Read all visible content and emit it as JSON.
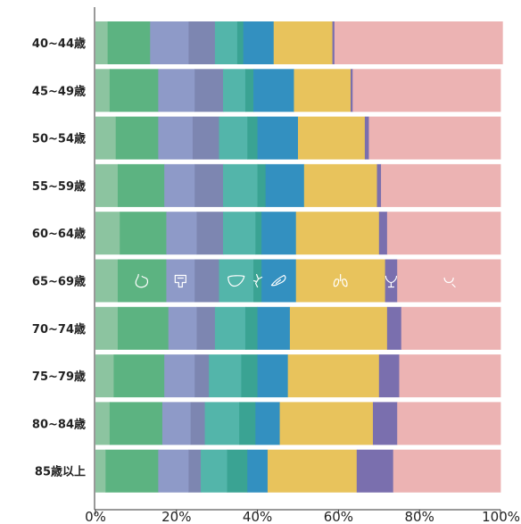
{
  "chart_data": {
    "type": "bar",
    "orientation": "horizontal",
    "stacked": true,
    "normalized": true,
    "title": "",
    "xlabel": "",
    "ylabel": "",
    "xlim": [
      0,
      100
    ],
    "x_ticks": [
      "0%",
      "20%",
      "40%",
      "60%",
      "80%",
      "100%"
    ],
    "grid": false,
    "legend": "none",
    "categories": [
      "40~44歳",
      "45~49歳",
      "50~54歳",
      "55~59歳",
      "60~64歳",
      "65~69歳",
      "70~74歳",
      "75~79歳",
      "80~84歳",
      "85歳以上"
    ],
    "series": [
      {
        "color": "#8cc4a0",
        "values": [
          3.0,
          3.5,
          5.0,
          5.5,
          6.0,
          5.5,
          5.5,
          4.5,
          3.5,
          2.5
        ]
      },
      {
        "color": "#5cb381",
        "values": [
          10.5,
          12.0,
          10.5,
          11.5,
          11.5,
          12.0,
          12.5,
          12.5,
          13.0,
          13.0
        ]
      },
      {
        "color": "#8e9ac8",
        "values": [
          9.5,
          9.0,
          8.5,
          7.5,
          7.5,
          7.0,
          7.0,
          7.5,
          7.0,
          7.5
        ]
      },
      {
        "color": "#7d86b1",
        "values": [
          6.5,
          7.0,
          6.5,
          7.0,
          6.5,
          6.0,
          4.5,
          3.5,
          3.5,
          3.0
        ]
      },
      {
        "color": "#53b5aa",
        "values": [
          5.5,
          5.5,
          7.0,
          8.5,
          8.0,
          8.5,
          7.5,
          8.0,
          8.5,
          6.5
        ]
      },
      {
        "color": "#3aa393",
        "values": [
          1.5,
          2.0,
          2.5,
          2.0,
          1.5,
          2.0,
          3.0,
          4.0,
          4.0,
          5.0
        ]
      },
      {
        "color": "#3390c0",
        "values": [
          7.5,
          10.0,
          10.0,
          9.5,
          8.5,
          8.5,
          8.0,
          7.5,
          6.0,
          5.0
        ]
      },
      {
        "color": "#e8c35c",
        "values": [
          14.5,
          14.0,
          16.5,
          18.0,
          20.5,
          22.0,
          24.0,
          22.5,
          23.0,
          22.0
        ]
      },
      {
        "color": "#7a6fae",
        "values": [
          0.5,
          0.5,
          1.0,
          1.0,
          2.0,
          3.0,
          3.5,
          5.0,
          6.0,
          9.0
        ]
      },
      {
        "color": "#ecb3b3",
        "values": [
          41.5,
          36.5,
          32.5,
          29.5,
          28.0,
          25.5,
          24.5,
          25.0,
          25.5,
          26.5
        ]
      }
    ],
    "icons": [
      "stomach-icon",
      "intestine-icon",
      "liver-icon",
      "gallbladder-pancreas-icon",
      "pancreas-icon",
      "lung-icon",
      "uterus-icon",
      "breast-icon"
    ]
  }
}
